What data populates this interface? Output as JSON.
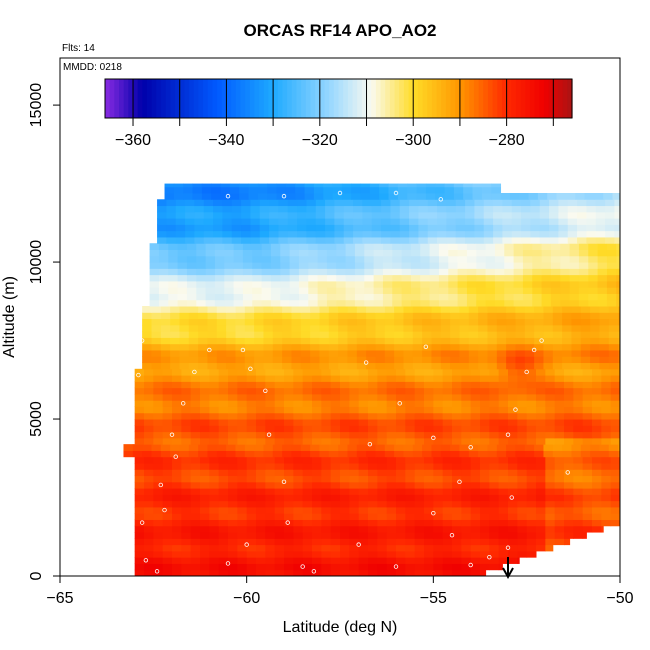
{
  "chart_data": {
    "type": "heatmap",
    "title": "ORCAS RF14 APO_AO2",
    "flights_label": "Flts: 14",
    "date_label": "MMDD: 0218",
    "xlabel": "Latitude (deg N)",
    "ylabel": "Altitude (m)",
    "xlim": [
      -65,
      -50
    ],
    "ylim": [
      0,
      16500
    ],
    "x_ticks": [
      -65,
      -60,
      -55,
      -50
    ],
    "y_ticks": [
      0,
      5000,
      10000,
      15000
    ],
    "colorbar": {
      "range": [
        -366,
        -266
      ],
      "ticks": [
        -360,
        -340,
        -320,
        -300,
        -280
      ],
      "colors": [
        "#8a2be2",
        "#0000aa",
        "#1e90ff",
        "#00bfff",
        "#ffffff",
        "#ffd700",
        "#ff8c00",
        "#ff0000",
        "#a52a2a"
      ]
    },
    "arrow_marker": {
      "latitude": -53,
      "label": ""
    },
    "field_profiles": [
      {
        "altitude": 0,
        "value": -276
      },
      {
        "altitude": 2500,
        "value": -280
      },
      {
        "altitude": 5000,
        "value": -285
      },
      {
        "altitude": 7000,
        "value": -292
      },
      {
        "altitude": 8500,
        "value": -305
      },
      {
        "altitude": 10000,
        "value": -320
      },
      {
        "altitude": 11000,
        "value": -330
      },
      {
        "altitude": 12400,
        "value": -336
      }
    ],
    "sample_points": [
      {
        "lat": -62.5,
        "alt": 12000
      },
      {
        "lat": -60.5,
        "alt": 12100
      },
      {
        "lat": -59.0,
        "alt": 12100
      },
      {
        "lat": -57.5,
        "alt": 12200
      },
      {
        "lat": -56.0,
        "alt": 12200
      },
      {
        "lat": -54.8,
        "alt": 12000
      },
      {
        "lat": -62.7,
        "alt": 11200
      },
      {
        "lat": -62.8,
        "alt": 7500
      },
      {
        "lat": -61.0,
        "alt": 7200
      },
      {
        "lat": -60.1,
        "alt": 7200
      },
      {
        "lat": -55.2,
        "alt": 7300
      },
      {
        "lat": -52.1,
        "alt": 7500
      },
      {
        "lat": -52.3,
        "alt": 7200
      },
      {
        "lat": -62.9,
        "alt": 6400
      },
      {
        "lat": -61.4,
        "alt": 6500
      },
      {
        "lat": -59.9,
        "alt": 6600
      },
      {
        "lat": -56.8,
        "alt": 6800
      },
      {
        "lat": -52.5,
        "alt": 6500
      },
      {
        "lat": -61.7,
        "alt": 5500
      },
      {
        "lat": -59.5,
        "alt": 5900
      },
      {
        "lat": -55.9,
        "alt": 5500
      },
      {
        "lat": -52.8,
        "alt": 5300
      },
      {
        "lat": -62.0,
        "alt": 4500
      },
      {
        "lat": -59.4,
        "alt": 4500
      },
      {
        "lat": -55.0,
        "alt": 4400
      },
      {
        "lat": -53.0,
        "alt": 4500
      },
      {
        "lat": -61.9,
        "alt": 3800
      },
      {
        "lat": -56.7,
        "alt": 4200
      },
      {
        "lat": -54.0,
        "alt": 4100
      },
      {
        "lat": -62.3,
        "alt": 2900
      },
      {
        "lat": -59.0,
        "alt": 3000
      },
      {
        "lat": -54.3,
        "alt": 3000
      },
      {
        "lat": -51.4,
        "alt": 3300
      },
      {
        "lat": -62.2,
        "alt": 2100
      },
      {
        "lat": -58.9,
        "alt": 1700
      },
      {
        "lat": -55.0,
        "alt": 2000
      },
      {
        "lat": -52.9,
        "alt": 2500
      },
      {
        "lat": -62.8,
        "alt": 1700
      },
      {
        "lat": -60.0,
        "alt": 1000
      },
      {
        "lat": -57.0,
        "alt": 1000
      },
      {
        "lat": -54.5,
        "alt": 1300
      },
      {
        "lat": -53.0,
        "alt": 900
      },
      {
        "lat": -62.7,
        "alt": 500
      },
      {
        "lat": -60.5,
        "alt": 400
      },
      {
        "lat": -58.5,
        "alt": 300
      },
      {
        "lat": -56.0,
        "alt": 300
      },
      {
        "lat": -54.0,
        "alt": 350
      },
      {
        "lat": -53.5,
        "alt": 600
      },
      {
        "lat": -62.4,
        "alt": 150
      },
      {
        "lat": -58.2,
        "alt": 150
      }
    ]
  }
}
